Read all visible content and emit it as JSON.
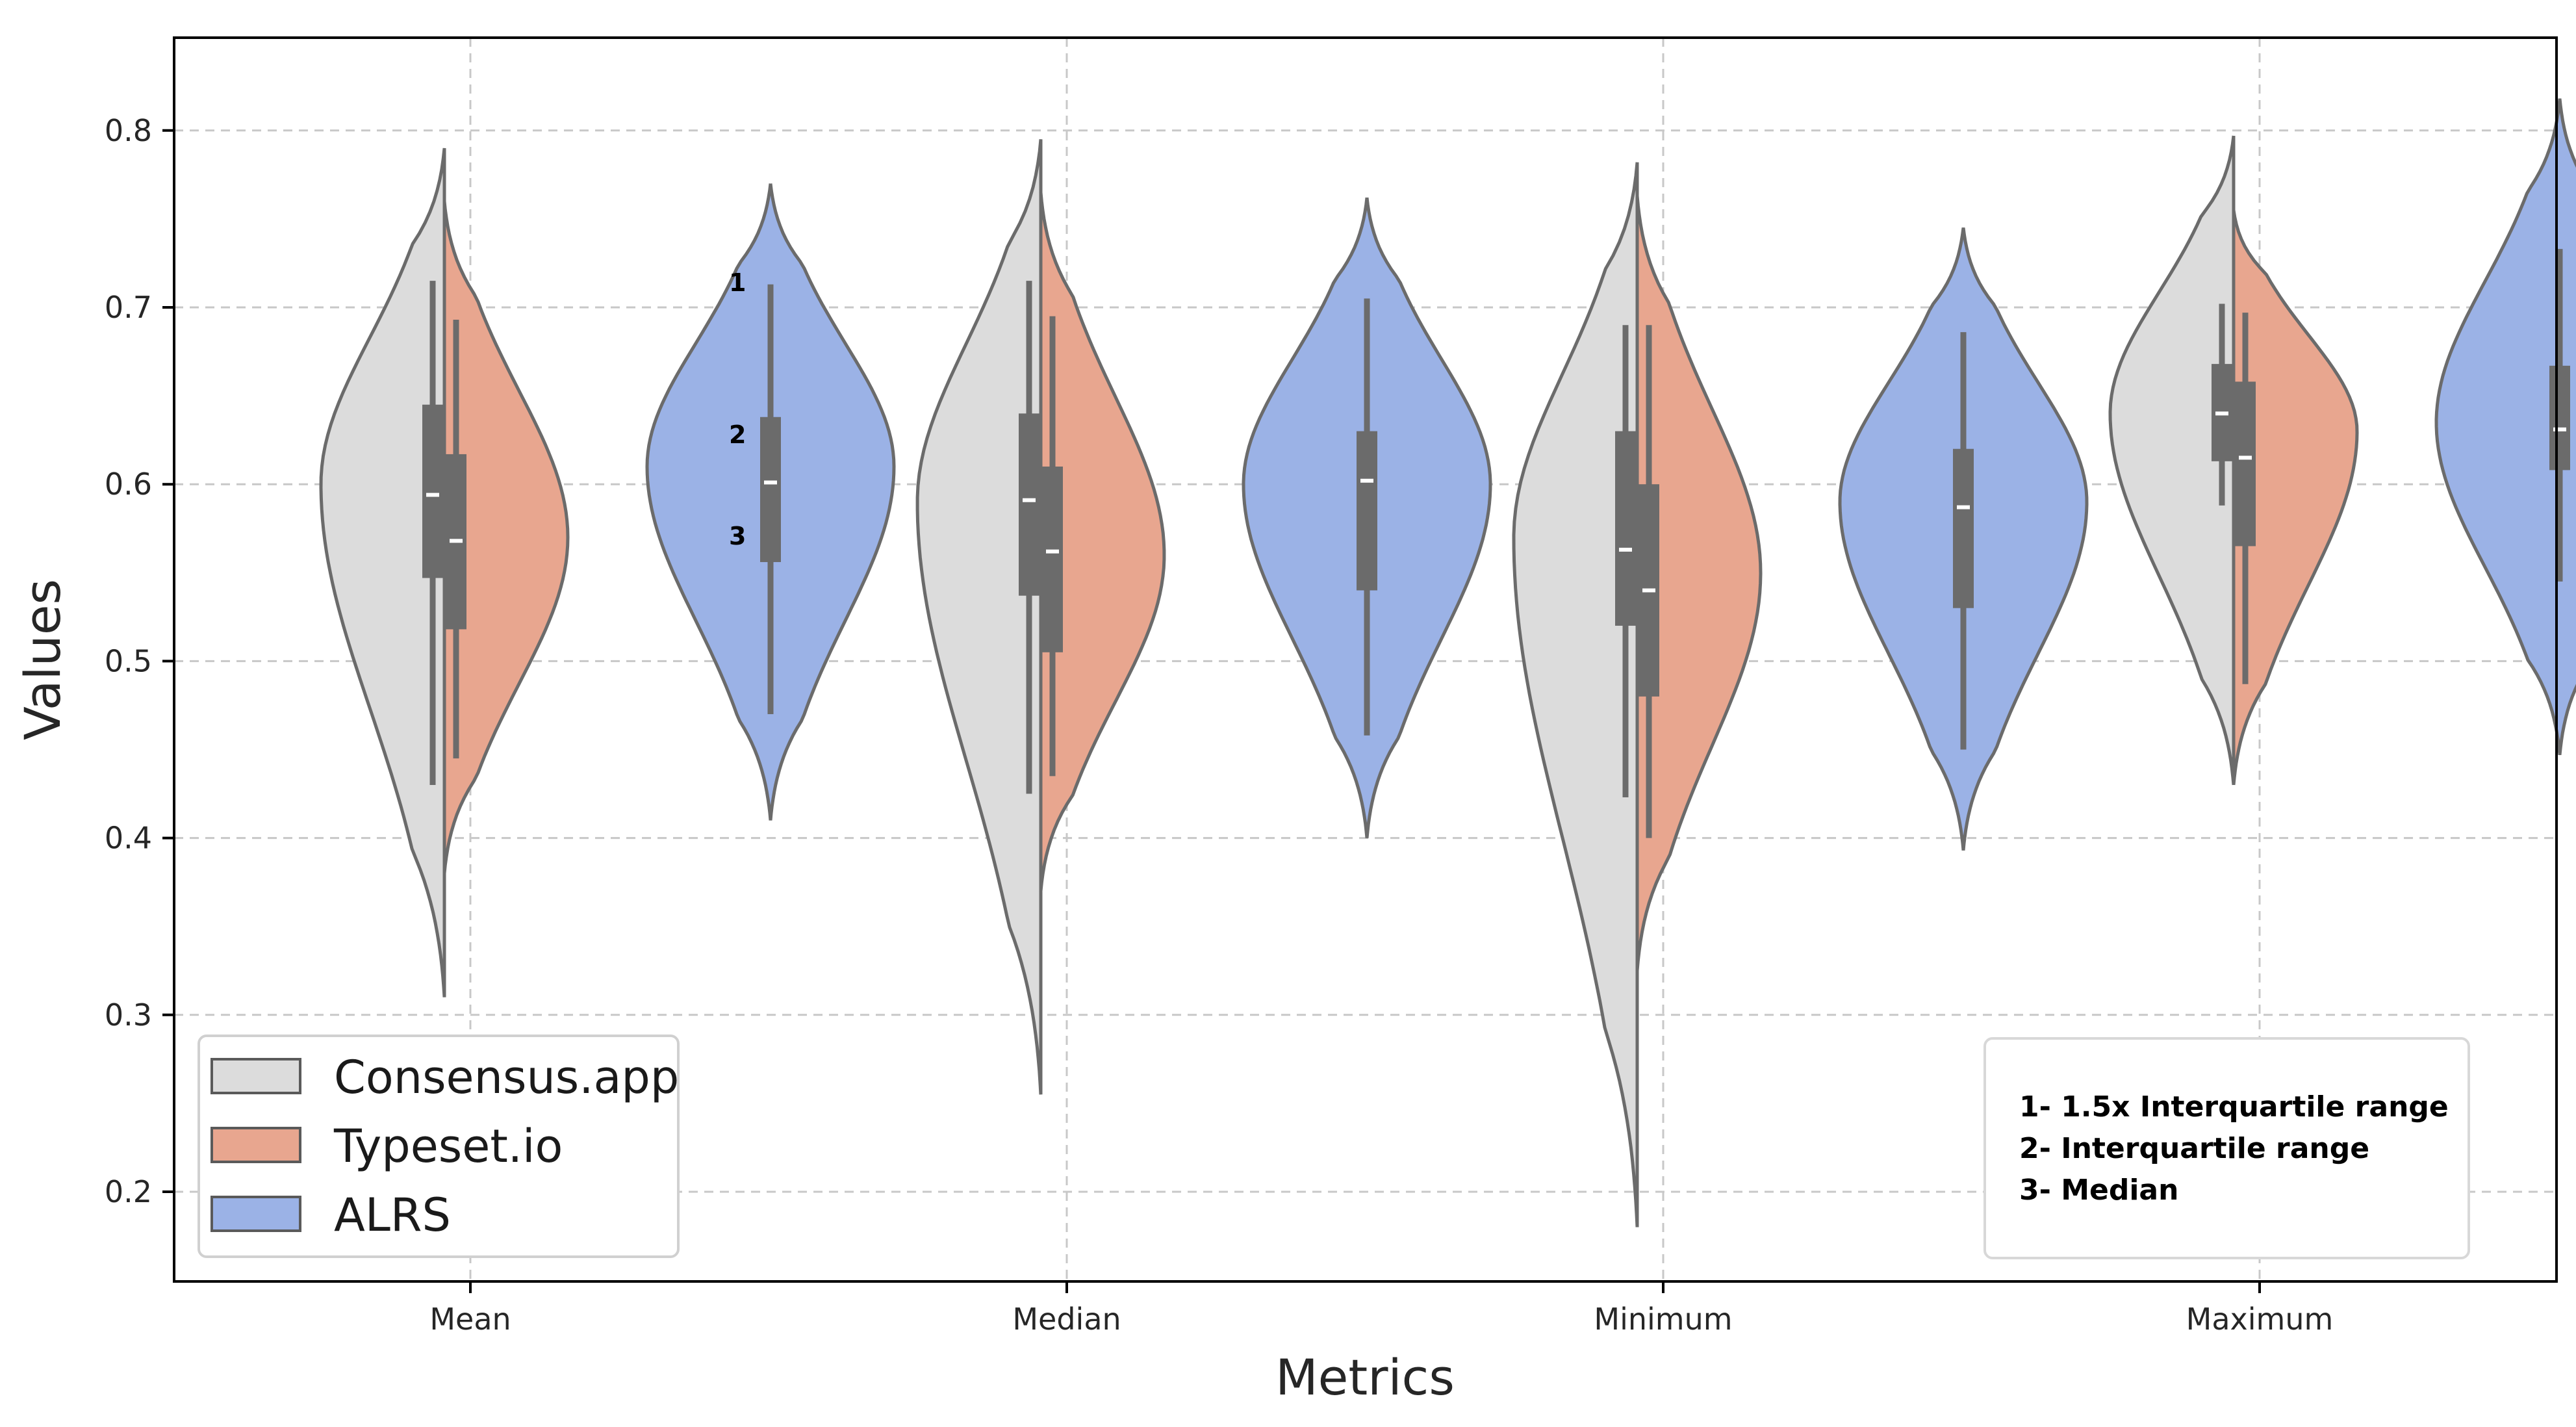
{
  "chart_data": {
    "type": "violin",
    "xlabel": "Metrics",
    "ylabel": "Values",
    "categories": [
      "Mean",
      "Median",
      "Minimum",
      "Maximum"
    ],
    "ylim": [
      0.17,
      0.85
    ],
    "yticks": [
      0.2,
      0.3,
      0.4,
      0.5,
      0.6,
      0.7,
      0.8
    ],
    "grid": true,
    "legend_position": "lower-left",
    "series": [
      {
        "name": "Consensus.app",
        "color": "#dcdcdc",
        "stats": [
          {
            "category": "Mean",
            "min": 0.31,
            "max": 0.79,
            "whisker_low": 0.43,
            "q1": 0.547,
            "median": 0.594,
            "q3": 0.645,
            "whisker_high": 0.715,
            "mode": 0.6
          },
          {
            "category": "Median",
            "min": 0.255,
            "max": 0.795,
            "whisker_low": 0.425,
            "q1": 0.537,
            "median": 0.591,
            "q3": 0.64,
            "whisker_high": 0.715,
            "mode": 0.59
          },
          {
            "category": "Minimum",
            "min": 0.18,
            "max": 0.782,
            "whisker_low": 0.423,
            "q1": 0.52,
            "median": 0.563,
            "q3": 0.63,
            "whisker_high": 0.69,
            "mode": 0.57
          },
          {
            "category": "Maximum",
            "min": 0.43,
            "max": 0.797,
            "whisker_low": 0.588,
            "q1": 0.613,
            "median": 0.64,
            "q3": 0.668,
            "whisker_high": 0.702,
            "mode": 0.64
          }
        ]
      },
      {
        "name": "Typeset.io",
        "color": "#e8a68f",
        "stats": [
          {
            "category": "Mean",
            "min": 0.38,
            "max": 0.76,
            "whisker_low": 0.445,
            "q1": 0.518,
            "median": 0.568,
            "q3": 0.617,
            "whisker_high": 0.693,
            "mode": 0.57
          },
          {
            "category": "Median",
            "min": 0.37,
            "max": 0.765,
            "whisker_low": 0.435,
            "q1": 0.505,
            "median": 0.562,
            "q3": 0.61,
            "whisker_high": 0.695,
            "mode": 0.56
          },
          {
            "category": "Minimum",
            "min": 0.325,
            "max": 0.763,
            "whisker_low": 0.4,
            "q1": 0.48,
            "median": 0.54,
            "q3": 0.6,
            "whisker_high": 0.69,
            "mode": 0.55
          },
          {
            "category": "Maximum",
            "min": 0.43,
            "max": 0.755,
            "whisker_low": 0.487,
            "q1": 0.565,
            "median": 0.615,
            "q3": 0.658,
            "whisker_high": 0.697,
            "mode": 0.63
          }
        ]
      },
      {
        "name": "ALRS",
        "color": "#9bb2e6",
        "stats": [
          {
            "category": "Mean",
            "min": 0.41,
            "max": 0.77,
            "whisker_low": 0.47,
            "q1": 0.556,
            "median": 0.601,
            "q3": 0.638,
            "whisker_high": 0.713,
            "mode": 0.61
          },
          {
            "category": "Median",
            "min": 0.4,
            "max": 0.762,
            "whisker_low": 0.458,
            "q1": 0.54,
            "median": 0.602,
            "q3": 0.63,
            "whisker_high": 0.705,
            "mode": 0.6
          },
          {
            "category": "Minimum",
            "min": 0.393,
            "max": 0.745,
            "whisker_low": 0.45,
            "q1": 0.53,
            "median": 0.587,
            "q3": 0.62,
            "whisker_high": 0.686,
            "mode": 0.59
          },
          {
            "category": "Maximum",
            "min": 0.447,
            "max": 0.818,
            "whisker_low": 0.545,
            "q1": 0.608,
            "median": 0.631,
            "q3": 0.667,
            "whisker_high": 0.733,
            "mode": 0.635
          }
        ]
      }
    ],
    "annotations": {
      "markers": [
        "1",
        "2",
        "3"
      ],
      "notes": [
        "1- 1.5x Interquartile range",
        "2- Interquartile range",
        "3- Median"
      ]
    }
  }
}
